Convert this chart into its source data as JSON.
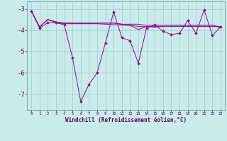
{
  "title": "",
  "xlabel": "Windchill (Refroidissement éolien,°C)",
  "background_color": "#c8ecea",
  "line_color": "#990099",
  "grid_color": "#99cccc",
  "x_values": [
    0,
    1,
    2,
    3,
    4,
    5,
    6,
    7,
    8,
    9,
    10,
    11,
    12,
    13,
    14,
    15,
    16,
    17,
    18,
    19,
    20,
    21,
    22,
    23
  ],
  "series1": [
    -3.1,
    -3.9,
    -3.65,
    -3.65,
    -3.75,
    -5.3,
    -7.35,
    -6.55,
    -6.0,
    -4.6,
    -3.15,
    -4.35,
    -4.5,
    -5.55,
    -3.9,
    -3.75,
    -4.05,
    -4.2,
    -4.15,
    -3.55,
    -4.15,
    -3.05,
    -4.25,
    -3.85
  ],
  "series2": [
    -3.1,
    -3.85,
    -3.5,
    -3.65,
    -3.7,
    -3.7,
    -3.7,
    -3.7,
    -3.7,
    -3.72,
    -3.74,
    -3.76,
    -3.78,
    -3.82,
    -3.84,
    -3.86,
    -3.82,
    -3.82,
    -3.82,
    -3.82,
    -3.82,
    -3.82,
    -3.82,
    -3.85
  ],
  "series3": [
    -3.1,
    -3.85,
    -3.5,
    -3.62,
    -3.67,
    -3.67,
    -3.67,
    -3.67,
    -3.67,
    -3.67,
    -3.67,
    -3.72,
    -3.72,
    -3.72,
    -3.77,
    -3.77,
    -3.77,
    -3.77,
    -3.77,
    -3.77,
    -3.77,
    -3.77,
    -3.77,
    -3.85
  ],
  "series4": [
    -3.1,
    -3.85,
    -3.5,
    -3.62,
    -3.67,
    -3.67,
    -3.67,
    -3.67,
    -3.67,
    -3.67,
    -3.67,
    -3.72,
    -3.77,
    -3.97,
    -3.82,
    -3.82,
    -3.82,
    -3.82,
    -3.82,
    -3.82,
    -3.82,
    -3.82,
    -3.82,
    -3.85
  ],
  "ylim": [
    -7.75,
    -2.65
  ],
  "yticks": [
    -7,
    -6,
    -5,
    -4,
    -3
  ],
  "xticks": [
    0,
    1,
    2,
    3,
    4,
    5,
    6,
    7,
    8,
    9,
    10,
    11,
    12,
    13,
    14,
    15,
    16,
    17,
    18,
    19,
    20,
    21,
    22,
    23
  ],
  "tick_color": "#660066",
  "xlabel_color": "#660066",
  "spine_color": "#7799aa"
}
